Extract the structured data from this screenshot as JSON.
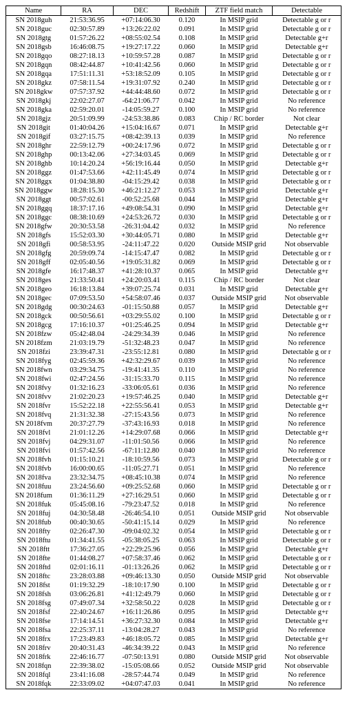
{
  "table": {
    "columns": [
      "Name",
      "RA",
      "DEC",
      "Redshift",
      "ZTF field match",
      "Detectable"
    ],
    "col_widths_pct": [
      16.5,
      15.5,
      16.5,
      11,
      20,
      20.5
    ],
    "font_family": "Times New Roman",
    "font_size_pt": 8,
    "border_color": "#000000",
    "background_color": "#ffffff",
    "text_color": "#000000",
    "rows": [
      [
        "SN 2018guh",
        "21:53:36.95",
        "+07:14:06.30",
        "0.120",
        "In MSIP grid",
        "Detectable g or r"
      ],
      [
        "SN 2018guc",
        "02:30:57.89",
        "+13:26:22.02",
        "0.091",
        "In MSIP grid",
        "Detectable g or r"
      ],
      [
        "SN 2018gtg",
        "01:57:26.22",
        "+08:55:02.54",
        "0.108",
        "In MSIP grid",
        "Detectable g+r"
      ],
      [
        "SN 2018gsb",
        "16:46:08.75",
        "+19:27:17.22",
        "0.060",
        "In MSIP grid",
        "Detectable g+r"
      ],
      [
        "SN 2018gqo",
        "08:27:18.13",
        "+10:59:57.28",
        "0.087",
        "In MSIP grid",
        "Detectable g or r"
      ],
      [
        "SN 2018gqn",
        "08:42:44.87",
        "+10:41:42.56",
        "0.060",
        "In MSIP grid",
        "Detectable g or r"
      ],
      [
        "SN 2018gqa",
        "17:51:11.31",
        "+53:18:52.09",
        "0.105",
        "In MSIP grid",
        "Detectable g or r"
      ],
      [
        "SN 2018gkz",
        "07:58:11.54",
        "+19:31:07.92",
        "0.240",
        "In MSIP grid",
        "Detectable g or r"
      ],
      [
        "SN 2018gkw",
        "07:57:37.92",
        "+44:44:48.60",
        "0.072",
        "In MSIP grid",
        "Detectable g or r"
      ],
      [
        "SN 2018gkj",
        "22:02:27.07",
        "-64:21:06.77",
        "0.042",
        "In MSIP grid",
        "No reference"
      ],
      [
        "SN 2018gka",
        "02:59:20.01",
        "-14:05:59.27",
        "0.100",
        "In MSIP grid",
        "No reference"
      ],
      [
        "SN 2018gjz",
        "20:51:09.99",
        "-24:53:38.86",
        "0.083",
        "Chip / RC border",
        "Not clear"
      ],
      [
        "SN 2018git",
        "01:40:04.26",
        "+15:04:16.67",
        "0.071",
        "In MSIP grid",
        "Detectable g+r"
      ],
      [
        "SN 2018gif",
        "03:27:15.75",
        "+08:42:39.13",
        "0.039",
        "In MSIP grid",
        "No reference"
      ],
      [
        "SN 2018ghr",
        "22:59:12.79",
        "+00:24:17.96",
        "0.072",
        "In MSIP grid",
        "Detectable g or r"
      ],
      [
        "SN 2018ghp",
        "00:13:42.06",
        "+27:34:03.45",
        "0.069",
        "In MSIP grid",
        "Detectable g or r"
      ],
      [
        "SN 2018ghb",
        "10:14:20.24",
        "+56:19:16.44",
        "0.050",
        "In MSIP grid",
        "Detectable g+r"
      ],
      [
        "SN 2018ggz",
        "01:47:53.66",
        "+42:11:45.49",
        "0.074",
        "In MSIP grid",
        "Detectable g or r"
      ],
      [
        "SN 2018ggx",
        "01:04:38.80",
        "-04:15:29.42",
        "0.038",
        "In MSIP grid",
        "Detectable g or r"
      ],
      [
        "SN 2018ggw",
        "18:28:15.30",
        "+46:21:12.27",
        "0.053",
        "In MSIP grid",
        "Detectable g+r"
      ],
      [
        "SN 2018ggt",
        "00:57:02.61",
        "-00:52:25.68",
        "0.044",
        "In MSIP grid",
        "Detectable g+r"
      ],
      [
        "SN 2018ggq",
        "18:37:17.16",
        "+49:08:54.31",
        "0.090",
        "In MSIP grid",
        "Detectable g+r"
      ],
      [
        "SN 2018ggc",
        "08:38:10.69",
        "+24:53:26.72",
        "0.030",
        "In MSIP grid",
        "Detectable g or r"
      ],
      [
        "SN 2018gfw",
        "20:30:53.58",
        "-26:31:04.42",
        "0.032",
        "In MSIP grid",
        "No reference"
      ],
      [
        "SN 2018gfs",
        "15:52:03.30",
        "+30:44:05.71",
        "0.080",
        "In MSIP grid",
        "Detectable g+r"
      ],
      [
        "SN 2018gfi",
        "00:58:53.95",
        "-24:11:47.22",
        "0.020",
        "Outside MSIP grid",
        "Not observable"
      ],
      [
        "SN 2018gfg",
        "20:59:09.74",
        "-14:15:47.47",
        "0.082",
        "In MSIP grid",
        "Detectable g or r"
      ],
      [
        "SN 2018gff",
        "02:05:40.56",
        "+19:05:31.82",
        "0.069",
        "In MSIP grid",
        "Detectable g or r"
      ],
      [
        "SN 2018gfe",
        "16:17:48.37",
        "+41:28:10.37",
        "0.065",
        "In MSIP grid",
        "Detectable g+r"
      ],
      [
        "SN 2018ges",
        "21:33:50.41",
        "+24:20:03.41",
        "0.115",
        "Chip / RC border",
        "Not clear"
      ],
      [
        "SN 2018geo",
        "16:18:13.84",
        "+39:07:25.74",
        "0.031",
        "In MSIP grid",
        "Detectable g+r"
      ],
      [
        "SN 2018gec",
        "07:09:53.50",
        "+54:58:07.46",
        "0.037",
        "Outside MSIP grid",
        "Not observable"
      ],
      [
        "SN 2018gdg",
        "00:30:24.63",
        "-01:15:50.88",
        "0.057",
        "In MSIP grid",
        "Detectable g+r"
      ],
      [
        "SN 2018gck",
        "00:50:56.61",
        "+03:29:55.02",
        "0.100",
        "In MSIP grid",
        "Detectable g or r"
      ],
      [
        "SN 2018gcg",
        "17:16:10.37",
        "+01:25:46.25",
        "0.094",
        "In MSIP grid",
        "Detectable g+r"
      ],
      [
        "SN 2018fzw",
        "05:42:48.04",
        "-24:29:34.39",
        "0.046",
        "In MSIP grid",
        "No reference"
      ],
      [
        "SN 2018fzm",
        "21:03:19.79",
        "-51:32:48.23",
        "0.047",
        "In MSIP grid",
        "No reference"
      ],
      [
        "SN 2018fzi",
        "23:39:47.31",
        "-23:55:12.81",
        "0.080",
        "In MSIP grid",
        "Detectable g or r"
      ],
      [
        "SN 2018fyg",
        "02:45:59.36",
        "+42:32:29.67",
        "0.039",
        "In MSIP grid",
        "No reference"
      ],
      [
        "SN 2018fwn",
        "03:29:34.75",
        "-19:41:41.35",
        "0.110",
        "In MSIP grid",
        "No reference"
      ],
      [
        "SN 2018fwi",
        "02:47:24.56",
        "-31:15:33.70",
        "0.115",
        "In MSIP grid",
        "No reference"
      ],
      [
        "SN 2018fvy",
        "01:32:16.23",
        "-33:06:05.61",
        "0.036",
        "In MSIP grid",
        "No reference"
      ],
      [
        "SN 2018fvv",
        "21:02:20.23",
        "+19:57:46.25",
        "0.040",
        "In MSIP grid",
        "Detectable g+r"
      ],
      [
        "SN 2018fvr",
        "15:52:22.18",
        "+22:55:56.41",
        "0.053",
        "In MSIP grid",
        "Detectable g+r"
      ],
      [
        "SN 2018fvq",
        "21:31:32.38",
        "-27:15:43.56",
        "0.073",
        "In MSIP grid",
        "No reference"
      ],
      [
        "SN 2018fvm",
        "20:37:27.79",
        "-37:43:16.93",
        "0.018",
        "In MSIP grid",
        "No reference"
      ],
      [
        "SN 2018fvl",
        "21:01:12.26",
        "+14:29:07.68",
        "0.066",
        "In MSIP grid",
        "Detectable g+r"
      ],
      [
        "SN 2018fvj",
        "04:29:31.07",
        "-11:01:50.56",
        "0.066",
        "In MSIP grid",
        "No reference"
      ],
      [
        "SN 2018fvi",
        "01:57:42.56",
        "-67:11:12.80",
        "0.040",
        "In MSIP grid",
        "No reference"
      ],
      [
        "SN 2018fvh",
        "01:15:10.21",
        "-18:10:59.56",
        "0.073",
        "In MSIP grid",
        "Detectable g or r"
      ],
      [
        "SN 2018fvb",
        "16:00:00.65",
        "-11:05:27.71",
        "0.051",
        "In MSIP grid",
        "No reference"
      ],
      [
        "SN 2018fva",
        "23:32:34.75",
        "+08:45:10.38",
        "0.074",
        "In MSIP grid",
        "No reference"
      ],
      [
        "SN 2018fuu",
        "23:24:56.60",
        "+09:25:52.68",
        "0.060",
        "In MSIP grid",
        "Detectable g or r"
      ],
      [
        "SN 2018fum",
        "01:36:11.29",
        "+27:16:29.51",
        "0.060",
        "In MSIP grid",
        "Detectable g or r"
      ],
      [
        "SN 2018fuk",
        "05:45:08.16",
        "-79:23:47.52",
        "0.018",
        "In MSIP grid",
        "No reference"
      ],
      [
        "SN 2018fuj",
        "04:30:58.48",
        "-26:46:54.10",
        "0.051",
        "Outside MSIP grid",
        "Not observable"
      ],
      [
        "SN 2018fub",
        "00:40:30.65",
        "-50:41:15.14",
        "0.029",
        "In MSIP grid",
        "No reference"
      ],
      [
        "SN 2018fty",
        "02:26:47.30",
        "-09:04:02.32",
        "0.054",
        "In MSIP grid",
        "Detectable g or r"
      ],
      [
        "SN 2018ftu",
        "01:34:41.55",
        "-05:38:05.25",
        "0.063",
        "In MSIP grid",
        "Detectable g or r"
      ],
      [
        "SN 2018ftt",
        "17:36:27.05",
        "+22:29:25.96",
        "0.056",
        "In MSIP grid",
        "Detectable g+r"
      ],
      [
        "SN 2018fte",
        "01:44:08.27",
        "+07:58:37.46",
        "0.062",
        "In MSIP grid",
        "Detectable g or r"
      ],
      [
        "SN 2018ftd",
        "02:01:16.11",
        "-01:13:26.26",
        "0.062",
        "In MSIP grid",
        "Detectable g or r"
      ],
      [
        "SN 2018ftc",
        "23:28:03.88",
        "+09:46:13.30",
        "0.050",
        "Outside MSIP grid",
        "Not observable"
      ],
      [
        "SN 2018fst",
        "01:19:32.29",
        "-18:10:17.90",
        "0.100",
        "In MSIP grid",
        "Detectable g or r"
      ],
      [
        "SN 2018fsh",
        "03:06:26.81",
        "+41:12:49.79",
        "0.060",
        "In MSIP grid",
        "Detectable g or r"
      ],
      [
        "SN 2018fsg",
        "07:49:07.34",
        "+32:58:50.22",
        "0.028",
        "In MSIP grid",
        "Detectable g or r"
      ],
      [
        "SN 2018fsf",
        "22:40:24.67",
        "+16:11:26.86",
        "0.095",
        "In MSIP grid",
        "Detectable g+r"
      ],
      [
        "SN 2018fse",
        "17:14:14.51",
        "+36:27:32.30",
        "0.084",
        "In MSIP grid",
        "Detectable g+r"
      ],
      [
        "SN 2018fsa",
        "22:25:37.11",
        "-13:04:28.27",
        "0.043",
        "In MSIP grid",
        "No reference"
      ],
      [
        "SN 2018frx",
        "17:23:49.83",
        "+46:18:05.72",
        "0.085",
        "In MSIP grid",
        "Detectable g+r"
      ],
      [
        "SN 2018frv",
        "20:40:31.43",
        "-46:34:39.22",
        "0.043",
        "In MSIP grid",
        "No reference"
      ],
      [
        "SN 2018frk",
        "22:46:16.77",
        "-07:50:13.91",
        "0.080",
        "Outside MSIP grid",
        "Not observable"
      ],
      [
        "SN 2018fqn",
        "22:39:38.02",
        "-15:05:08.66",
        "0.052",
        "Outside MSIP grid",
        "Not observable"
      ],
      [
        "SN 2018fql",
        "23:41:16.08",
        "-28:57:44.74",
        "0.049",
        "In MSIP grid",
        "No reference"
      ],
      [
        "SN 2018fqk",
        "22:33:09.02",
        "+04:07:47.03",
        "0.041",
        "In MSIP grid",
        "No reference"
      ]
    ]
  }
}
